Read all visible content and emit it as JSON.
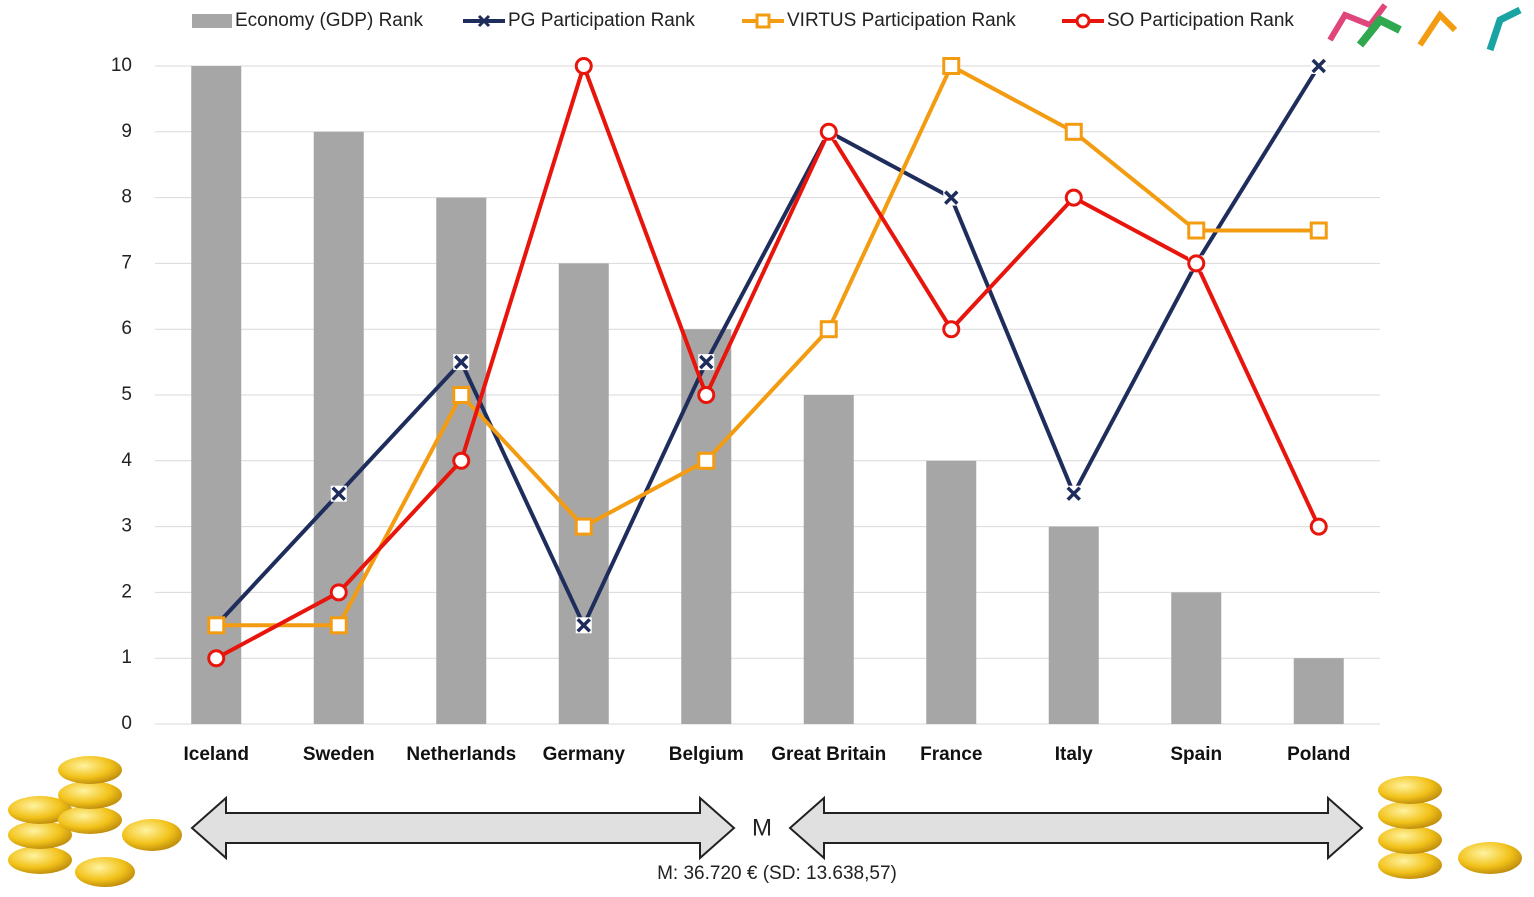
{
  "chart_data": {
    "type": "bar",
    "categories": [
      "Iceland",
      "Sweden",
      "Netherlands",
      "Germany",
      "Belgium",
      "Great Britain",
      "France",
      "Italy",
      "Spain",
      "Poland"
    ],
    "series": [
      {
        "name": "Economy (GDP) Rank",
        "type": "bar",
        "color": "#a6a6a6",
        "values": [
          10,
          9,
          8,
          7,
          6,
          5,
          4,
          3,
          2,
          1
        ]
      },
      {
        "name": "PG Participation Rank",
        "type": "line",
        "marker": "x",
        "color": "#1f2d5c",
        "values": [
          1.5,
          3.5,
          5.5,
          1.5,
          5.5,
          9,
          8,
          3.5,
          7,
          10
        ]
      },
      {
        "name": "VIRTUS Participation Rank",
        "type": "line",
        "marker": "square",
        "color": "#f39c12",
        "values": [
          1.5,
          1.5,
          5,
          3,
          4,
          6,
          10,
          9,
          7.5,
          7.5
        ]
      },
      {
        "name": "SO Participation Rank",
        "type": "line",
        "marker": "circle",
        "color": "#e8150c",
        "values": [
          1,
          2,
          4,
          10,
          5,
          9,
          6,
          8,
          7,
          3
        ]
      }
    ],
    "ylim": [
      0,
      10
    ],
    "yticks": [
      0,
      1,
      2,
      3,
      4,
      5,
      6,
      7,
      8,
      9,
      10
    ],
    "grid": true,
    "legend": "top",
    "annotations": [
      "M",
      "M: 36.720 € (SD: 13.638,57)"
    ]
  }
}
